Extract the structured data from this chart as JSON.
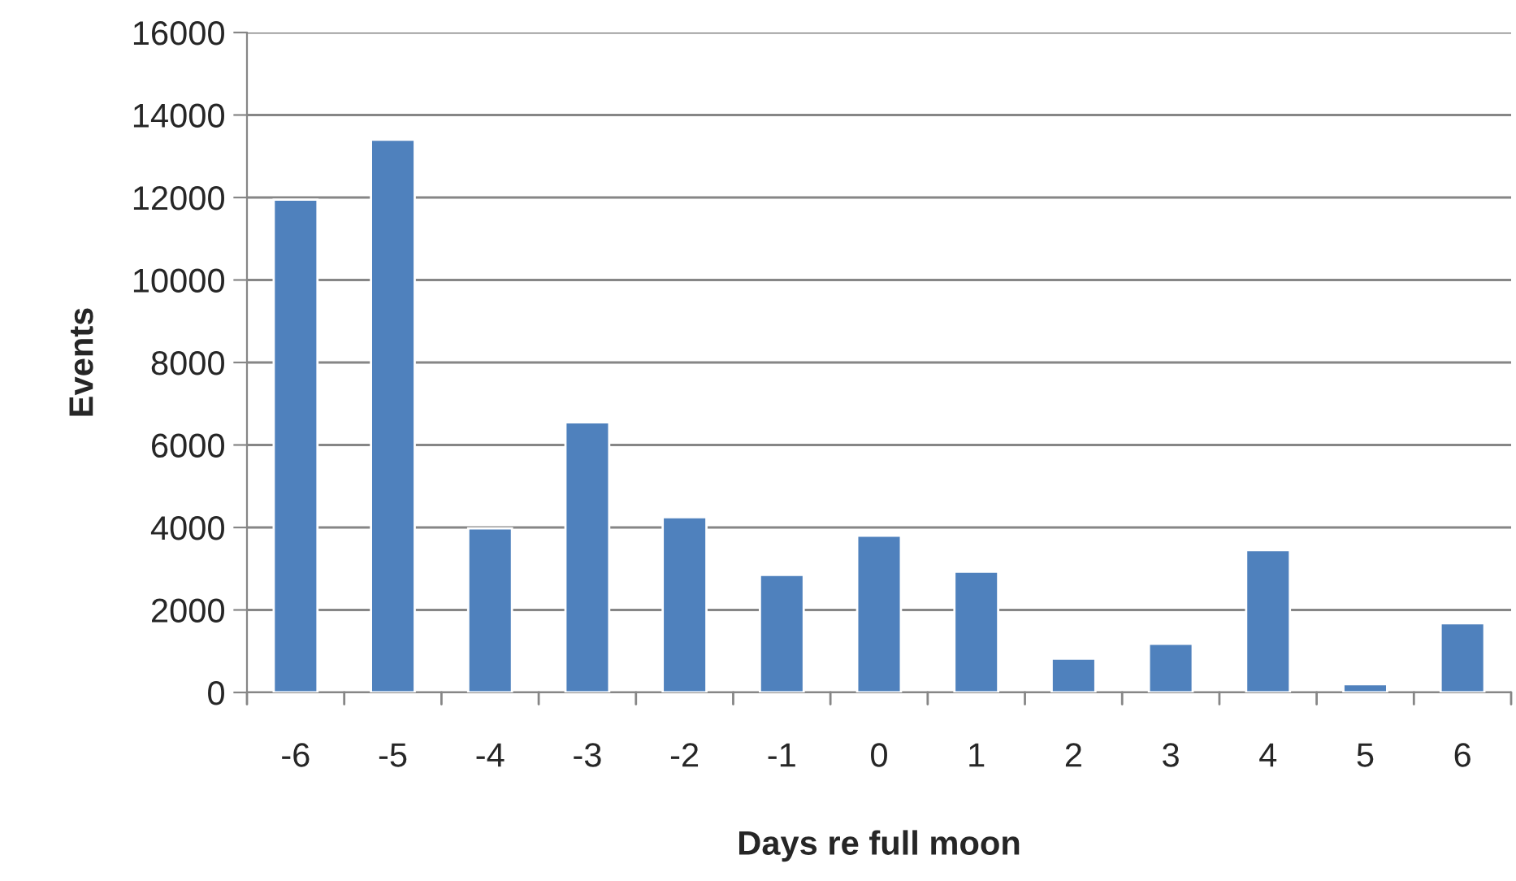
{
  "chart_data": {
    "type": "bar",
    "xlabel": "Days re full moon",
    "ylabel": "Events",
    "categories": [
      "-6",
      "-5",
      "-4",
      "-3",
      "-2",
      "-1",
      "0",
      "1",
      "2",
      "3",
      "4",
      "5",
      "6"
    ],
    "values": [
      11950,
      13400,
      3980,
      6550,
      4250,
      2850,
      3800,
      2930,
      820,
      1180,
      3450,
      200,
      1680
    ],
    "color": "#4f81bd",
    "ylim": [
      0,
      16000
    ],
    "yticks": [
      0,
      2000,
      4000,
      6000,
      8000,
      10000,
      12000,
      14000,
      16000
    ],
    "grid": "y"
  }
}
